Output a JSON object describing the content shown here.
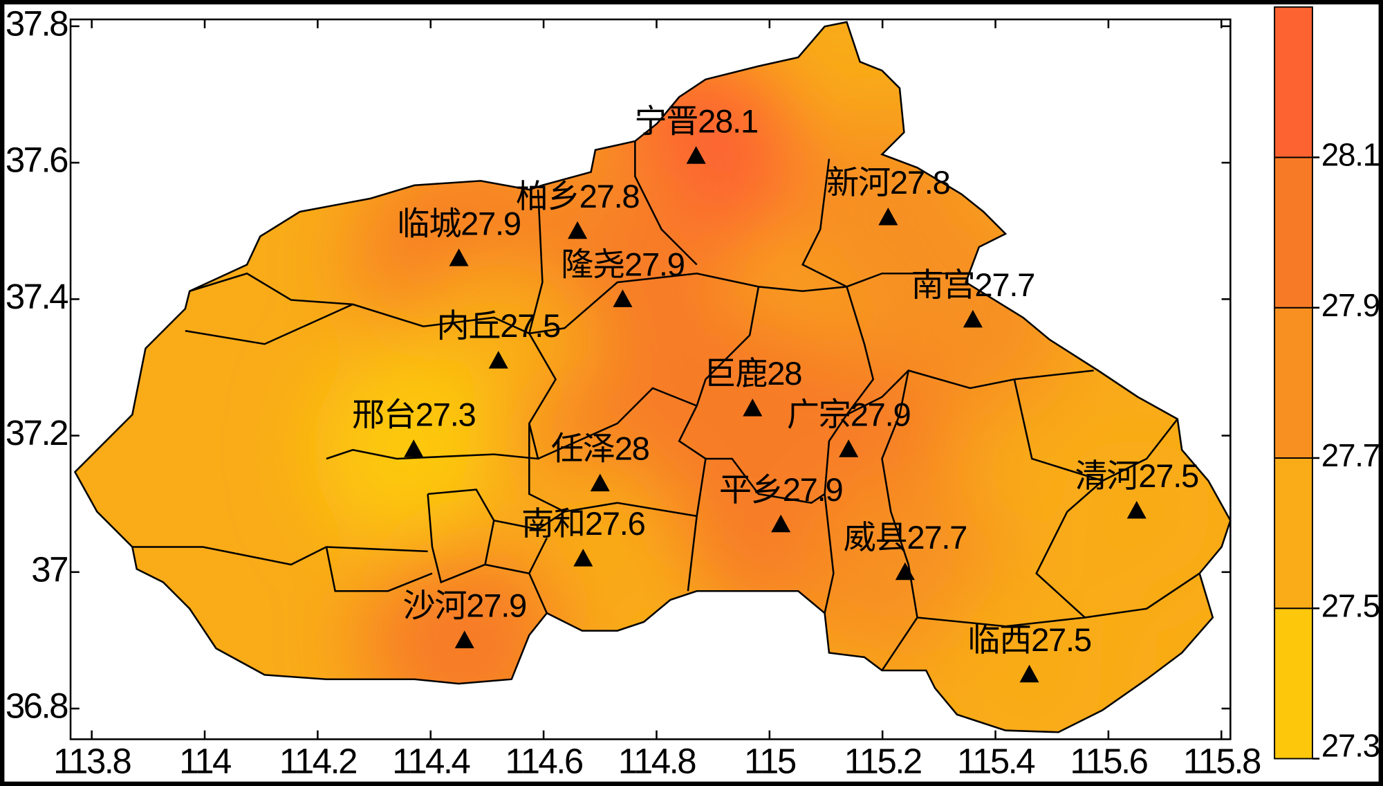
{
  "chart_data": {
    "type": "map",
    "xlim": [
      113.7625,
      115.816
    ],
    "ylim": [
      36.755,
      37.81
    ],
    "xticks": [
      113.8,
      114,
      114.2,
      114.4,
      114.6,
      114.8,
      115,
      115.2,
      115.4,
      115.6,
      115.8
    ],
    "yticks": [
      36.8,
      37,
      37.2,
      37.4,
      37.6,
      37.8
    ],
    "stations": {
      "names": [
        "宁晋",
        "新河",
        "柏乡",
        "临城",
        "隆尧",
        "南宫",
        "内丘",
        "巨鹿",
        "邢台",
        "广宗",
        "任泽",
        "平乡",
        "清河",
        "南和",
        "威县",
        "沙河",
        "临西"
      ],
      "x": [
        114.87,
        115.21,
        114.66,
        114.45,
        114.74,
        115.36,
        114.52,
        114.97,
        114.37,
        115.14,
        114.7,
        115.02,
        115.65,
        114.67,
        115.24,
        114.46,
        115.46
      ],
      "y": [
        37.61,
        37.52,
        37.5,
        37.46,
        37.4,
        37.37,
        37.31,
        37.24,
        37.18,
        37.18,
        37.13,
        37.07,
        37.09,
        37.02,
        37.0,
        36.9,
        36.85
      ],
      "values": [
        28.1,
        27.8,
        27.8,
        27.9,
        27.9,
        27.7,
        27.5,
        28,
        27.3,
        27.9,
        28,
        27.9,
        27.5,
        27.6,
        27.7,
        27.9,
        27.5
      ]
    },
    "marker_color": "#000000",
    "colorbar": {
      "ticks": [
        27.3,
        27.5,
        27.7,
        27.9,
        28.1
      ],
      "colors": [
        "#fdc80c",
        "#f9ab18",
        "#f79020",
        "#f77b27",
        "#fd6331"
      ]
    }
  }
}
